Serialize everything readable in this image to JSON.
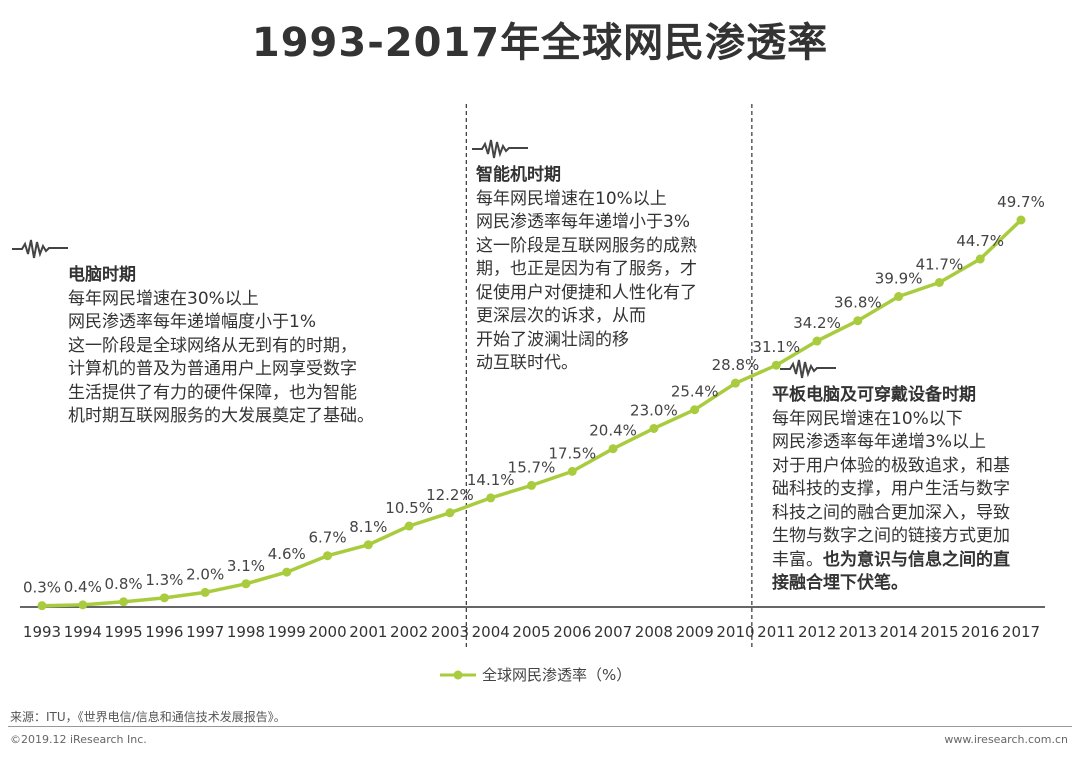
{
  "page": {
    "title": "1993-2017年全球网民渗透率",
    "source": "来源：ITU，《世界电信/信息和通信技术发展报告》。",
    "copyright": "©2019.12 iResearch Inc.",
    "website": "www.iresearch.com.cn",
    "accent_color": "#a9cc3e"
  },
  "eras": {
    "pc": {
      "title": "电脑时期",
      "lines": [
        "每年网民增速在30%以上",
        "网民渗透率每年递增幅度小于1%",
        "这一阶段是全球网络从无到有的时期，",
        "计算机的普及为普通用户上网享受数字",
        "生活提供了有力的硬件保障，也为智能",
        "机时期互联网服务的大发展奠定了基础。"
      ]
    },
    "smartphone": {
      "title": "智能机时期",
      "lines": [
        "每年网民增速在10%以上",
        "网民渗透率每年递增小于3%",
        "这一阶段是互联网服务的成熟",
        "期，也正是因为有了服务，才",
        "促使用户对便捷和人性化有了",
        "更深层次的诉求，从而",
        "开始了波澜壮阔的移",
        "动互联时代。"
      ]
    },
    "tablet": {
      "title": "平板电脑及可穿戴设备时期",
      "lines": [
        "每年网民增速在10%以下",
        "网民渗透率每年递增3%以上",
        "对于用户体验的极致追求，和基",
        "础科技的支撑，用户生活与数字",
        "科技之间的融合更加深入，导致",
        "生物与数字之间的链接方式更加"
      ],
      "last_line": "丰富。",
      "bold_a": "也为意识与信息之间的直",
      "bold_b": "接融合埋下伏笔。"
    }
  },
  "chart_data": {
    "type": "line",
    "title": "1993-2017年全球网民渗透率",
    "categories": [
      "1993",
      "1994",
      "1995",
      "1996",
      "1997",
      "1998",
      "1999",
      "2000",
      "2001",
      "2002",
      "2003",
      "2004",
      "2005",
      "2006",
      "2007",
      "2008",
      "2009",
      "2010",
      "2011",
      "2012",
      "2013",
      "2014",
      "2015",
      "2016",
      "2017"
    ],
    "series": [
      {
        "name": "全球网民渗透率（%）",
        "values": [
          0.3,
          0.4,
          0.8,
          1.3,
          2.0,
          3.1,
          4.6,
          6.7,
          8.1,
          10.5,
          12.2,
          14.1,
          15.7,
          17.5,
          20.4,
          23.0,
          25.4,
          28.8,
          31.1,
          34.2,
          36.8,
          39.9,
          41.7,
          44.7,
          49.7
        ],
        "labels": [
          "0.3%",
          "0.4%",
          "0.8%",
          "1.3%",
          "2.0%",
          "3.1%",
          "4.6%",
          "6.7%",
          "8.1%",
          "10.5%",
          "12.2%",
          "14.1%",
          "15.7%",
          "17.5%",
          "20.4%",
          "23.0%",
          "25.4%",
          "28.8%",
          "31.1%",
          "34.2%",
          "36.8%",
          "39.9%",
          "41.7%",
          "44.7%",
          "49.7%"
        ],
        "color": "#a9cc3e"
      }
    ],
    "dividers_after": [
      "2003",
      "2010"
    ],
    "grid": false,
    "legend_position": "bottom-center"
  }
}
